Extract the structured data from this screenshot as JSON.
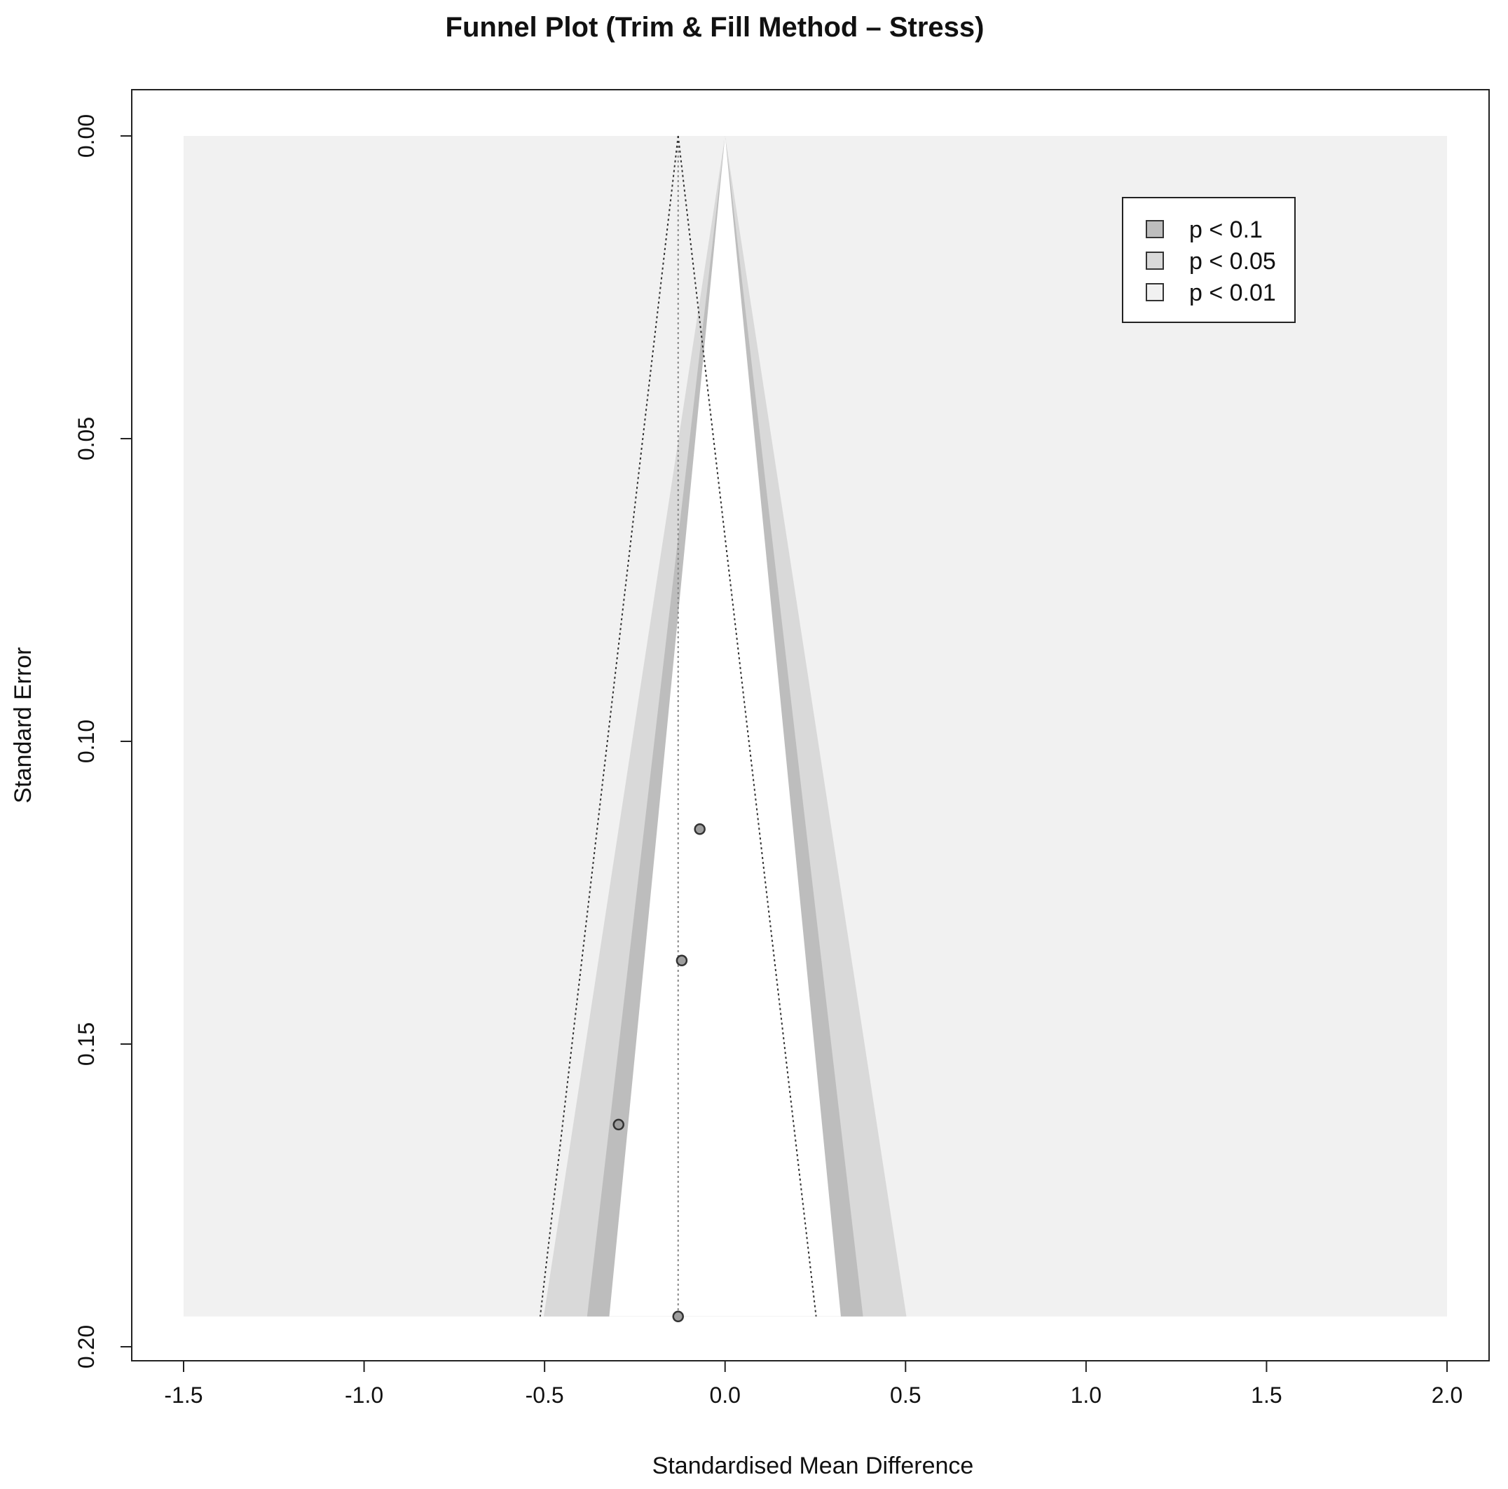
{
  "chart_data": {
    "type": "scatter",
    "title": "Funnel Plot (Trim & Fill Method – Stress)",
    "xlabel": "Standardised Mean Difference",
    "ylabel": "Standard Error",
    "xlim": [
      -1.5,
      2.0
    ],
    "ylim": [
      0.2,
      0.0
    ],
    "y_reversed": true,
    "x_ticks": [
      "-1.5",
      "-1.0",
      "-0.5",
      "0.0",
      "0.5",
      "1.0",
      "1.5",
      "2.0"
    ],
    "x_tick_values": [
      -1.5,
      -1.0,
      -0.5,
      0.0,
      0.5,
      1.0,
      1.5,
      2.0
    ],
    "y_ticks": [
      "0.00",
      "0.05",
      "0.10",
      "0.15",
      "0.20"
    ],
    "y_tick_values": [
      0.0,
      0.05,
      0.1,
      0.15,
      0.2
    ],
    "se_max": 0.195,
    "pooled_estimate": -0.13,
    "contour_center": 0.0,
    "contours": [
      {
        "label": "p < 0.1",
        "z": 1.645,
        "color": "#bdbdbd"
      },
      {
        "label": "p < 0.05",
        "z": 1.96,
        "color": "#d9d9d9"
      },
      {
        "label": "p < 0.01",
        "z": 2.576,
        "color": "#f1f1f1"
      }
    ],
    "points": [
      {
        "x": -0.07,
        "se": 0.1145
      },
      {
        "x": -0.12,
        "se": 0.1362
      },
      {
        "x": -0.295,
        "se": 0.1633
      },
      {
        "x": -0.13,
        "se": 0.195
      }
    ],
    "legend_position": "top-right",
    "grid": false
  }
}
